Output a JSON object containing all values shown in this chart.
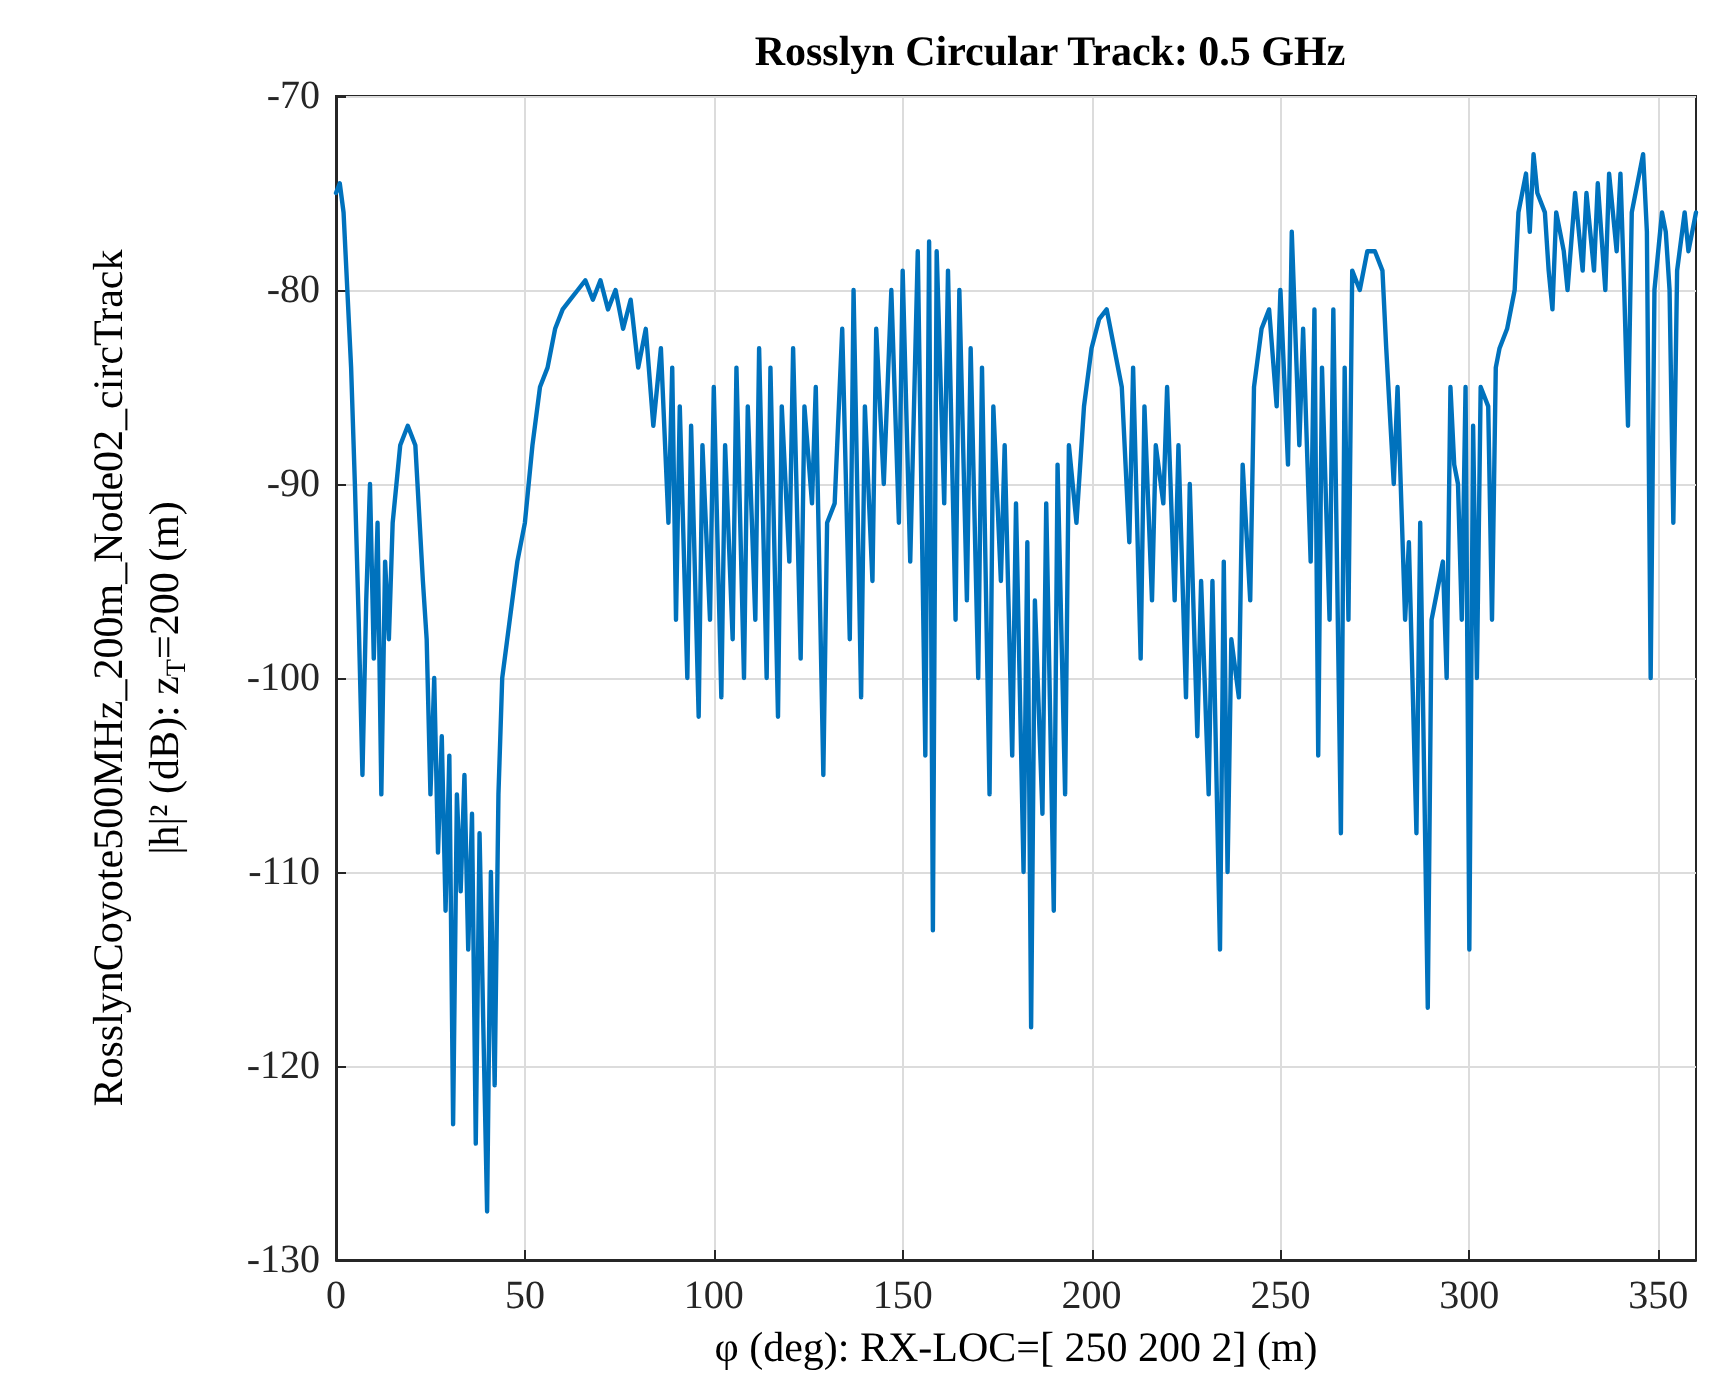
{
  "chart_data": {
    "type": "line",
    "title": "Rosslyn Circular Track: 0.5 GHz",
    "xlabel": "φ (deg): RX-LOC=[ 250 200 2] (m)",
    "ylabel": "RosslynCoyote500MHz_200m_Node02_circTrack\n|h|² (dB): z$_{T}$=200 (m)",
    "xlim": [
      0,
      360
    ],
    "xticks": [
      0,
      50,
      100,
      150,
      200,
      250,
      300,
      350
    ],
    "ylim": [
      -130,
      -70
    ],
    "yticks": [
      -130,
      -120,
      -110,
      -100,
      -90,
      -80,
      -70
    ],
    "grid": true,
    "marker": "none",
    "line_style": "solid",
    "series": [
      {
        "color": "#0072bd",
        "x": [
          0,
          1,
          2,
          3,
          4,
          5,
          6,
          7,
          8,
          9,
          10,
          11,
          12,
          13,
          14,
          15,
          17,
          19,
          21,
          23,
          24,
          25,
          26,
          27,
          28,
          29,
          30,
          31,
          32,
          33,
          34,
          35,
          36,
          37,
          38,
          39,
          40,
          41,
          42,
          43,
          44,
          46,
          48,
          50,
          52,
          54,
          56,
          58,
          60,
          62,
          64,
          66,
          68,
          70,
          72,
          74,
          76,
          78,
          80,
          82,
          84,
          86,
          88,
          89,
          90,
          91,
          93,
          94,
          96,
          97,
          99,
          100,
          102,
          103,
          105,
          106,
          108,
          109,
          111,
          112,
          114,
          115,
          117,
          118,
          120,
          121,
          123,
          124,
          126,
          127,
          129,
          130,
          132,
          134,
          136,
          137,
          139,
          140,
          142,
          143,
          145,
          147,
          149,
          150,
          152,
          154,
          156,
          157,
          158,
          159,
          161,
          162,
          164,
          165,
          167,
          168,
          170,
          171,
          173,
          174,
          176,
          177,
          179,
          180,
          182,
          183,
          184,
          185,
          187,
          188,
          190,
          191,
          193,
          194,
          196,
          198,
          200,
          202,
          204,
          206,
          208,
          210,
          211,
          213,
          214,
          216,
          217,
          219,
          220,
          222,
          223,
          225,
          226,
          228,
          229,
          231,
          232,
          234,
          235,
          236,
          237,
          239,
          240,
          242,
          243,
          245,
          247,
          249,
          250,
          252,
          253,
          255,
          256,
          258,
          259,
          260,
          261,
          263,
          264,
          266,
          267,
          268,
          269,
          271,
          273,
          275,
          277,
          278,
          280,
          281,
          283,
          284,
          286,
          287,
          289,
          290,
          292,
          293,
          294,
          295,
          296,
          297,
          298,
          299,
          300,
          301,
          302,
          303,
          305,
          306,
          307,
          308,
          310,
          312,
          313,
          315,
          316,
          317,
          318,
          320,
          321,
          322,
          323,
          325,
          326,
          328,
          330,
          331,
          333,
          334,
          336,
          337,
          339,
          340,
          341,
          342,
          343,
          345,
          346,
          347,
          348,
          349,
          351,
          352,
          353,
          354,
          355,
          357,
          358,
          359,
          360
        ],
        "values": [
          -75,
          -74.5,
          -76,
          -80,
          -84,
          -90,
          -97,
          -105,
          -96,
          -90,
          -99,
          -92,
          -106,
          -94,
          -98,
          -92,
          -88,
          -87,
          -88,
          -95,
          -98,
          -106,
          -100,
          -109,
          -103,
          -112,
          -104,
          -123,
          -106,
          -111,
          -105,
          -114,
          -107,
          -124,
          -108,
          -118,
          -127.5,
          -110,
          -121,
          -106,
          -100,
          -97,
          -94,
          -92,
          -88,
          -85,
          -84,
          -82,
          -81,
          -80.5,
          -80,
          -79.5,
          -80.5,
          -79.5,
          -81,
          -80,
          -82,
          -80.5,
          -84,
          -82,
          -87,
          -83,
          -92,
          -84,
          -97,
          -86,
          -100,
          -87,
          -102,
          -88,
          -97,
          -85,
          -101,
          -88,
          -98,
          -84,
          -100,
          -86,
          -97,
          -83,
          -100,
          -84,
          -102,
          -86,
          -94,
          -83,
          -99,
          -86,
          -91,
          -85,
          -105,
          -92,
          -91,
          -82,
          -98,
          -80,
          -101,
          -86,
          -95,
          -82,
          -90,
          -80,
          -92,
          -79,
          -94,
          -78,
          -104,
          -77.5,
          -113,
          -78,
          -91,
          -79,
          -97,
          -80,
          -96,
          -83,
          -100,
          -84,
          -106,
          -86,
          -95,
          -88,
          -104,
          -91,
          -110,
          -93,
          -118,
          -96,
          -107,
          -91,
          -112,
          -89,
          -106,
          -88,
          -92,
          -86,
          -83,
          -81.5,
          -81,
          -83,
          -85,
          -93,
          -84,
          -99,
          -86,
          -96,
          -88,
          -91,
          -85,
          -96,
          -88,
          -101,
          -90,
          -103,
          -95,
          -106,
          -95,
          -114,
          -94,
          -110,
          -98,
          -101,
          -89,
          -96,
          -85,
          -82,
          -81,
          -86,
          -80,
          -89,
          -77,
          -88,
          -82,
          -94,
          -81,
          -104,
          -84,
          -97,
          -81,
          -108,
          -84,
          -97,
          -79,
          -80,
          -78,
          -78,
          -79,
          -83,
          -90,
          -85,
          -97,
          -93,
          -108,
          -92,
          -117,
          -97,
          -95,
          -94,
          -100,
          -85,
          -89,
          -90,
          -97,
          -85,
          -114,
          -87,
          -100,
          -85,
          -86,
          -97,
          -84,
          -83,
          -82,
          -80,
          -76,
          -74,
          -77,
          -73,
          -75,
          -76,
          -79,
          -81,
          -76,
          -78,
          -80,
          -75,
          -79,
          -75,
          -79,
          -74.5,
          -80,
          -74,
          -78,
          -74,
          -80,
          -87,
          -76,
          -74,
          -73,
          -77,
          -100,
          -80,
          -76,
          -77,
          -80,
          -92,
          -79,
          -76,
          -78,
          -77,
          -76
        ]
      }
    ]
  }
}
